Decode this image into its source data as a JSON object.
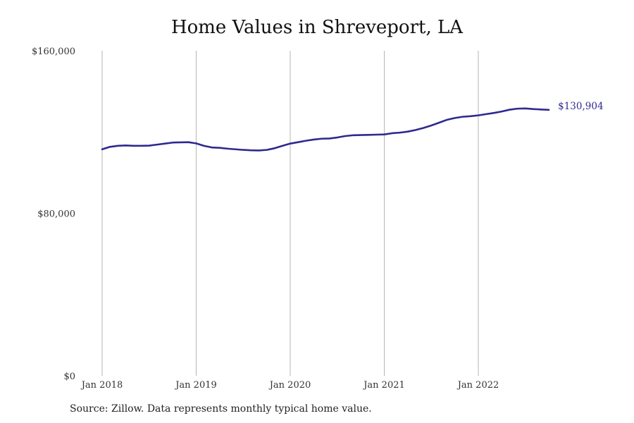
{
  "chart_data": {
    "type": "line",
    "title": "Home Values in Shreveport, LA",
    "xlabel": "",
    "ylabel": "",
    "ylim": [
      0,
      160000
    ],
    "xlim": [
      "2018-01",
      "2022-10"
    ],
    "grid": {
      "x": true,
      "y": false
    },
    "y_ticks": [
      {
        "value": 0,
        "label": "$0"
      },
      {
        "value": 80000,
        "label": "$80,000"
      },
      {
        "value": 160000,
        "label": "$160,000"
      }
    ],
    "x_ticks": [
      {
        "value": "2018-01",
        "label": "Jan 2018"
      },
      {
        "value": "2019-01",
        "label": "Jan 2019"
      },
      {
        "value": "2020-01",
        "label": "Jan 2020"
      },
      {
        "value": "2021-01",
        "label": "Jan 2021"
      },
      {
        "value": "2022-01",
        "label": "Jan 2022"
      }
    ],
    "line_color": "#2e2a8f",
    "series": [
      {
        "x": [
          "2018-01",
          "2018-02",
          "2018-03",
          "2018-04",
          "2018-05",
          "2018-06",
          "2018-07",
          "2018-08",
          "2018-09",
          "2018-10",
          "2018-11",
          "2018-12",
          "2019-01",
          "2019-02",
          "2019-03",
          "2019-04",
          "2019-05",
          "2019-06",
          "2019-07",
          "2019-08",
          "2019-09",
          "2019-10",
          "2019-11",
          "2019-12",
          "2020-01",
          "2020-02",
          "2020-03",
          "2020-04",
          "2020-05",
          "2020-06",
          "2020-07",
          "2020-08",
          "2020-09",
          "2020-10",
          "2020-11",
          "2020-12",
          "2021-01",
          "2021-02",
          "2021-03",
          "2021-04",
          "2021-05",
          "2021-06",
          "2021-07",
          "2021-08",
          "2021-09",
          "2021-10",
          "2021-11",
          "2021-12",
          "2022-01",
          "2022-02",
          "2022-03",
          "2022-04",
          "2022-05",
          "2022-06",
          "2022-07",
          "2022-08",
          "2022-09",
          "2022-10"
        ],
        "values": [
          111500,
          112700,
          113200,
          113400,
          113200,
          113200,
          113300,
          113800,
          114300,
          114800,
          114900,
          115000,
          114400,
          113200,
          112400,
          112200,
          111800,
          111500,
          111200,
          111000,
          110900,
          111200,
          112000,
          113200,
          114300,
          115000,
          115700,
          116300,
          116700,
          116800,
          117300,
          118000,
          118400,
          118500,
          118600,
          118700,
          118800,
          119400,
          119700,
          120200,
          121000,
          122000,
          123200,
          124600,
          126000,
          126900,
          127500,
          127800,
          128200,
          128800,
          129400,
          130100,
          131000,
          131500,
          131600,
          131300,
          131100,
          130904
        ]
      }
    ],
    "end_label": "$130,904"
  },
  "source_note": "Source: Zillow. Data represents monthly typical home value."
}
